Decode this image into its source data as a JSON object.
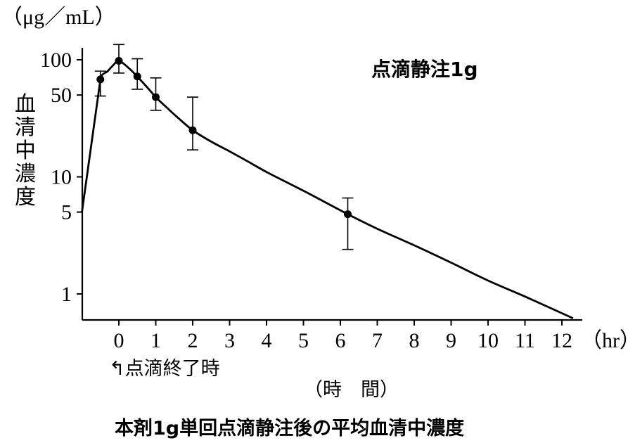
{
  "chart_data": {
    "type": "line",
    "title": "点滴静注1g",
    "caption": "本剤1g単回点滴静注後の平均血清中濃度",
    "y_unit": "（μg／mL）",
    "ylabel": "血清中濃度",
    "xlabel": "（時　間）",
    "x_unit": "（hr）",
    "yscale": "log",
    "ylim": [
      0.8,
      170
    ],
    "xlim": [
      -1,
      12.5
    ],
    "x_ticks": [
      0,
      1,
      2,
      3,
      4,
      5,
      6,
      7,
      8,
      9,
      10,
      11,
      12
    ],
    "x_tick_labels": [
      "0",
      "1",
      "2",
      "3",
      "4",
      "5",
      "6",
      "7",
      "8",
      "9",
      "10",
      "11",
      "12"
    ],
    "y_ticks": [
      1,
      5,
      10,
      50,
      100
    ],
    "y_tick_labels": [
      "1",
      "5",
      "10",
      "50",
      "100"
    ],
    "annotation": "↰点滴終了時",
    "grid": false,
    "series": [
      {
        "points": [
          {
            "x": -0.5,
            "y": 68,
            "err_low": 49,
            "err_high": 80
          },
          {
            "x": 0,
            "y": 98,
            "err_low": 77,
            "err_high": 135
          },
          {
            "x": 0.5,
            "y": 72,
            "err_low": 56,
            "err_high": 102
          },
          {
            "x": 1,
            "y": 48,
            "err_low": 37,
            "err_high": 70
          },
          {
            "x": 2,
            "y": 25,
            "err_low": 17,
            "err_high": 48
          },
          {
            "x": 6.2,
            "y": 4.8,
            "err_low": 2.4,
            "err_high": 6.6
          }
        ],
        "curve": [
          [
            -1,
            5
          ],
          [
            -0.5,
            68
          ],
          [
            -0.3,
            80
          ],
          [
            -0.15,
            90
          ],
          [
            0,
            98
          ],
          [
            0.25,
            86
          ],
          [
            0.5,
            72
          ],
          [
            0.75,
            59
          ],
          [
            1,
            48
          ],
          [
            1.3,
            39
          ],
          [
            1.6,
            32
          ],
          [
            2,
            25
          ],
          [
            2.5,
            20
          ],
          [
            3,
            16.5
          ],
          [
            3.5,
            13.5
          ],
          [
            4,
            11
          ],
          [
            5,
            7.6
          ],
          [
            6.2,
            4.8
          ],
          [
            7,
            3.6
          ],
          [
            8,
            2.6
          ],
          [
            9,
            1.85
          ],
          [
            10,
            1.3
          ],
          [
            11,
            0.95
          ],
          [
            12.3,
            0.62
          ]
        ]
      }
    ]
  }
}
